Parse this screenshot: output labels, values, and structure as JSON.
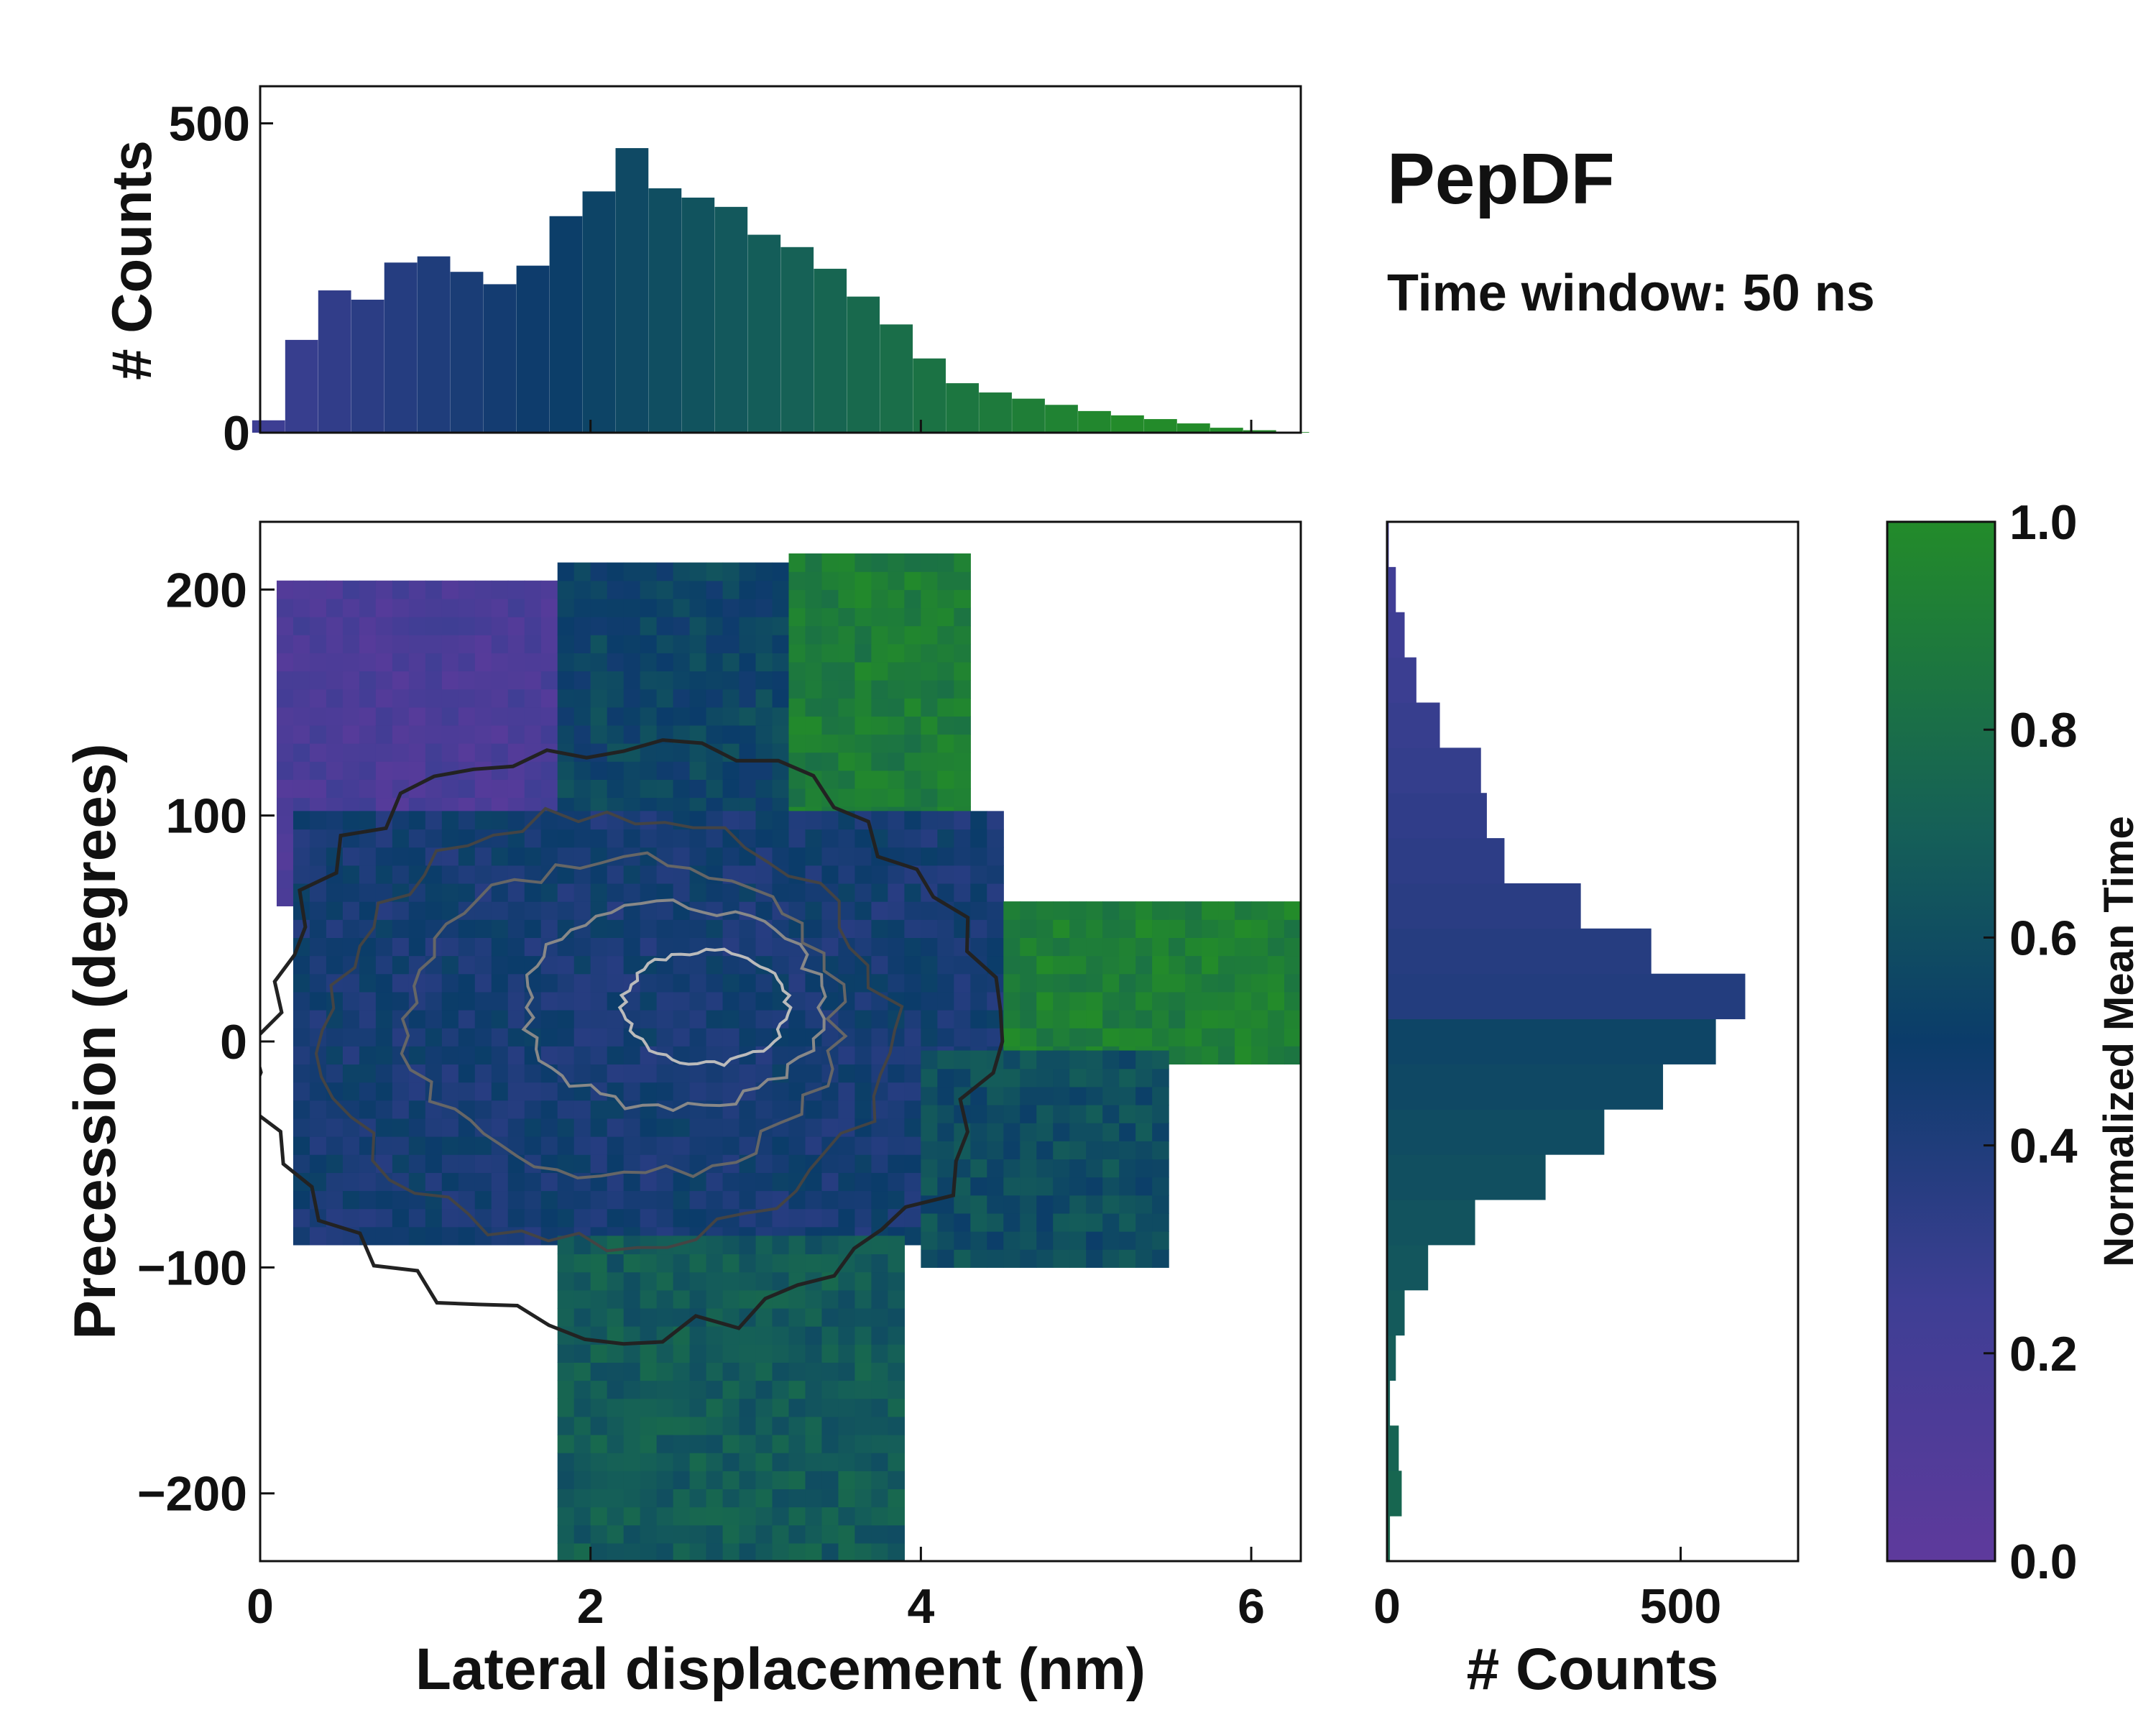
{
  "title": "PepDF",
  "subtitle": "Time window: 50 ns",
  "colors": {
    "purple": "#5e3a9c",
    "blue": "#274a8c",
    "navy": "#0b3c6a",
    "teal": "#155f58",
    "green": "#238b2a"
  },
  "chart_data": [
    {
      "id": "top-histogram",
      "type": "bar",
      "title": "",
      "xlabel": "",
      "ylabel": "# Counts",
      "xlim": [
        0,
        6.3
      ],
      "ylim": [
        0,
        560
      ],
      "yticks": [
        0,
        500
      ],
      "x": [
        0.05,
        0.25,
        0.45,
        0.65,
        0.85,
        1.05,
        1.25,
        1.45,
        1.65,
        1.85,
        2.05,
        2.25,
        2.45,
        2.65,
        2.85,
        3.05,
        3.25,
        3.45,
        3.65,
        3.85,
        4.05,
        4.25,
        4.45,
        4.65,
        4.85,
        5.05,
        5.25,
        5.45,
        5.65,
        5.85,
        6.05,
        6.25
      ],
      "values": [
        20,
        150,
        230,
        215,
        275,
        285,
        260,
        240,
        270,
        350,
        390,
        460,
        395,
        380,
        365,
        320,
        300,
        265,
        220,
        175,
        120,
        80,
        65,
        55,
        45,
        35,
        28,
        22,
        15,
        8,
        4,
        1
      ]
    },
    {
      "id": "main-heatmap",
      "type": "heatmap",
      "title": "",
      "xlabel": "Lateral displacement (nm)",
      "ylabel": "Precession (degrees)",
      "xlim": [
        0,
        6.3
      ],
      "ylim": [
        -230,
        230
      ],
      "xticks": [
        0,
        2,
        4,
        6
      ],
      "yticks": [
        -200,
        -100,
        0,
        100,
        200
      ],
      "color_label": "Normalized Mean Time",
      "regions": [
        {
          "name": "upper-left",
          "x": [
            0.1,
            1.8
          ],
          "y": [
            60,
            200
          ],
          "mean_time": 0.15
        },
        {
          "name": "upper-center",
          "x": [
            1.8,
            3.2
          ],
          "y": [
            100,
            210
          ],
          "mean_time": 0.55
        },
        {
          "name": "upper-right",
          "x": [
            3.2,
            4.3
          ],
          "y": [
            80,
            210
          ],
          "mean_time": 0.9
        },
        {
          "name": "core",
          "x": [
            0.2,
            4.5
          ],
          "y": [
            -90,
            100
          ],
          "mean_time": 0.45
        },
        {
          "name": "right-tail",
          "x": [
            4.5,
            6.3
          ],
          "y": [
            -10,
            60
          ],
          "mean_time": 0.92
        },
        {
          "name": "lower-right",
          "x": [
            4.0,
            5.5
          ],
          "y": [
            -100,
            -10
          ],
          "mean_time": 0.6
        },
        {
          "name": "lower-stem",
          "x": [
            1.8,
            3.9
          ],
          "y": [
            -230,
            -90
          ],
          "mean_time": 0.68
        }
      ]
    },
    {
      "id": "right-histogram",
      "type": "bar",
      "orientation": "horizontal",
      "title": "",
      "xlabel": "# Counts",
      "ylabel": "",
      "xlim": [
        0,
        700
      ],
      "ylim": [
        -230,
        230
      ],
      "xticks": [
        0,
        500
      ],
      "y": [
        -220,
        -200,
        -180,
        -160,
        -140,
        -120,
        -100,
        -80,
        -60,
        -40,
        -20,
        0,
        20,
        40,
        60,
        80,
        100,
        120,
        140,
        160,
        180,
        200,
        220
      ],
      "values": [
        5,
        25,
        20,
        5,
        15,
        30,
        70,
        150,
        270,
        370,
        470,
        560,
        610,
        450,
        330,
        200,
        170,
        160,
        90,
        50,
        30,
        15,
        3
      ]
    },
    {
      "id": "colorbar",
      "type": "heatmap",
      "title": "",
      "xlabel": "",
      "ylabel": "Normalized Mean Time",
      "ylim": [
        0,
        1
      ],
      "ticks": [
        "0.0",
        "0.2",
        "0.4",
        "0.6",
        "0.8",
        "1.0"
      ]
    }
  ]
}
